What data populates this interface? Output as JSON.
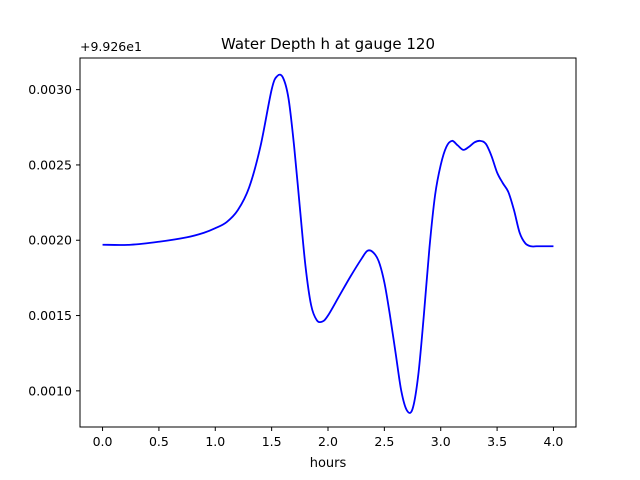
{
  "chart_data": {
    "type": "line",
    "title": "Water Depth h at gauge 120",
    "xlabel": "hours",
    "ylabel": "",
    "offset_label": "+9.926e1",
    "xlim": [
      -0.2,
      4.2
    ],
    "ylim": [
      0.00076,
      0.00321
    ],
    "xticks": [
      0.0,
      0.5,
      1.0,
      1.5,
      2.0,
      2.5,
      3.0,
      3.5,
      4.0
    ],
    "xtick_labels": [
      "0.0",
      "0.5",
      "1.0",
      "1.5",
      "2.0",
      "2.5",
      "3.0",
      "3.5",
      "4.0"
    ],
    "yticks": [
      0.001,
      0.0015,
      0.002,
      0.0025,
      0.003
    ],
    "ytick_labels": [
      "0.0010",
      "0.0015",
      "0.0020",
      "0.0025",
      "0.0030"
    ],
    "grid": false,
    "series": [
      {
        "color": "#0000ff",
        "x": [
          0.0,
          0.25,
          0.5,
          0.75,
          0.9,
          1.0,
          1.1,
          1.2,
          1.3,
          1.4,
          1.5,
          1.55,
          1.6,
          1.65,
          1.7,
          1.75,
          1.8,
          1.85,
          1.9,
          1.95,
          2.0,
          2.1,
          2.2,
          2.3,
          2.35,
          2.4,
          2.45,
          2.5,
          2.55,
          2.6,
          2.65,
          2.7,
          2.75,
          2.8,
          2.85,
          2.9,
          2.95,
          3.0,
          3.05,
          3.1,
          3.15,
          3.2,
          3.25,
          3.3,
          3.35,
          3.4,
          3.45,
          3.5,
          3.55,
          3.6,
          3.65,
          3.7,
          3.75,
          3.8,
          3.85,
          3.9,
          3.95,
          4.0
        ],
        "y": [
          0.00197,
          0.00197,
          0.00199,
          0.00202,
          0.00205,
          0.00208,
          0.00212,
          0.0022,
          0.00235,
          0.00262,
          0.003,
          0.00309,
          0.00308,
          0.00294,
          0.00262,
          0.00222,
          0.00183,
          0.00157,
          0.00147,
          0.00146,
          0.0015,
          0.00163,
          0.00176,
          0.00188,
          0.00193,
          0.00192,
          0.00186,
          0.00172,
          0.0015,
          0.00125,
          0.001,
          0.00087,
          0.00088,
          0.0011,
          0.0015,
          0.00195,
          0.0023,
          0.0025,
          0.00262,
          0.00266,
          0.00263,
          0.0026,
          0.00262,
          0.00265,
          0.00266,
          0.00264,
          0.00256,
          0.00245,
          0.00238,
          0.00232,
          0.0022,
          0.00205,
          0.00198,
          0.00196,
          0.00196,
          0.00196,
          0.00196,
          0.00196
        ]
      }
    ]
  }
}
